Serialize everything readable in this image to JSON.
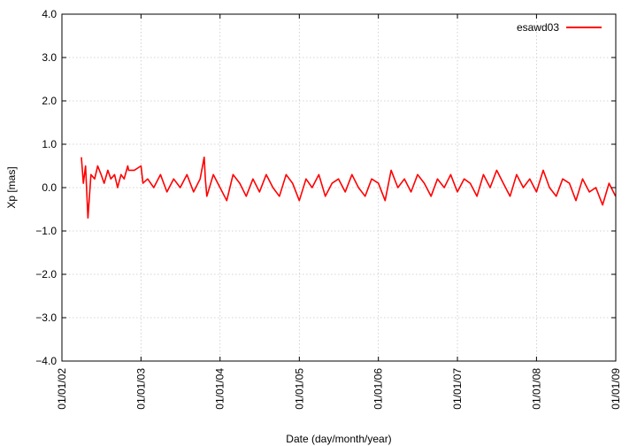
{
  "chart_data": {
    "type": "line",
    "title": "",
    "xlabel": "Date (day/month/year)",
    "ylabel": "Xp [mas]",
    "xlim": [
      "2002-01-01",
      "2009-01-01"
    ],
    "ylim": [
      -4.0,
      4.0
    ],
    "x_ticks": [
      "01/01/02",
      "01/01/03",
      "01/01/04",
      "01/01/05",
      "01/01/06",
      "01/01/07",
      "01/01/08",
      "01/01/09"
    ],
    "y_ticks": [
      "4.0",
      "3.0",
      "2.0",
      "1.0",
      "0.0",
      "−1.0",
      "−2.0",
      "−3.0",
      "−4.0"
    ],
    "grid": true,
    "legend_position": "top-right",
    "series": [
      {
        "name": "esawd03",
        "color": "#ff0000",
        "x": [
          "2002-04-01",
          "2002-04-10",
          "2002-04-20",
          "2002-05-01",
          "2002-05-15",
          "2002-06-01",
          "2002-06-15",
          "2002-07-01",
          "2002-07-15",
          "2002-08-01",
          "2002-08-15",
          "2002-09-01",
          "2002-09-15",
          "2002-10-01",
          "2002-10-15",
          "2002-11-01",
          "2002-11-05",
          "2002-12-01",
          "2003-01-01",
          "2003-01-10",
          "2003-02-01",
          "2003-03-01",
          "2003-04-01",
          "2003-05-01",
          "2003-06-01",
          "2003-07-01",
          "2003-08-01",
          "2003-09-01",
          "2003-10-01",
          "2003-10-20",
          "2003-10-25",
          "2003-11-01",
          "2003-12-01",
          "2004-01-01",
          "2004-02-01",
          "2004-03-01",
          "2004-04-01",
          "2004-05-01",
          "2004-06-01",
          "2004-07-01",
          "2004-08-01",
          "2004-09-01",
          "2004-10-01",
          "2004-11-01",
          "2004-12-01",
          "2005-01-01",
          "2005-02-01",
          "2005-03-01",
          "2005-04-01",
          "2005-05-01",
          "2005-06-01",
          "2005-07-01",
          "2005-08-01",
          "2005-09-01",
          "2005-10-01",
          "2005-11-01",
          "2005-12-01",
          "2006-01-01",
          "2006-02-01",
          "2006-03-01",
          "2006-04-01",
          "2006-05-01",
          "2006-06-01",
          "2006-07-01",
          "2006-08-01",
          "2006-09-01",
          "2006-10-01",
          "2006-11-01",
          "2006-12-01",
          "2007-01-01",
          "2007-02-01",
          "2007-03-01",
          "2007-04-01",
          "2007-05-01",
          "2007-06-01",
          "2007-07-01",
          "2007-08-01",
          "2007-09-01",
          "2007-10-01",
          "2007-11-01",
          "2007-12-01",
          "2008-01-01",
          "2008-02-01",
          "2008-03-01",
          "2008-04-01",
          "2008-05-01",
          "2008-06-01",
          "2008-07-01",
          "2008-08-01",
          "2008-09-01",
          "2008-10-01",
          "2008-11-01",
          "2008-12-01",
          "2008-12-31"
        ],
        "y": [
          0.7,
          0.1,
          0.5,
          -0.7,
          0.3,
          0.2,
          0.5,
          0.3,
          0.1,
          0.4,
          0.2,
          0.3,
          0.0,
          0.3,
          0.2,
          0.5,
          0.4,
          0.4,
          0.5,
          0.1,
          0.2,
          0.0,
          0.3,
          -0.1,
          0.2,
          0.0,
          0.3,
          -0.1,
          0.2,
          0.7,
          0.2,
          -0.2,
          0.3,
          0.0,
          -0.3,
          0.3,
          0.1,
          -0.2,
          0.2,
          -0.1,
          0.3,
          0.0,
          -0.2,
          0.3,
          0.1,
          -0.3,
          0.2,
          0.0,
          0.3,
          -0.2,
          0.1,
          0.2,
          -0.1,
          0.3,
          0.0,
          -0.2,
          0.2,
          0.1,
          -0.3,
          0.4,
          0.0,
          0.2,
          -0.1,
          0.3,
          0.1,
          -0.2,
          0.2,
          0.0,
          0.3,
          -0.1,
          0.2,
          0.1,
          -0.2,
          0.3,
          0.0,
          0.4,
          0.1,
          -0.2,
          0.3,
          0.0,
          0.2,
          -0.1,
          0.4,
          0.0,
          -0.2,
          0.2,
          0.1,
          -0.3,
          0.2,
          -0.1,
          0.0,
          -0.4,
          0.1,
          -0.2
        ]
      }
    ]
  }
}
